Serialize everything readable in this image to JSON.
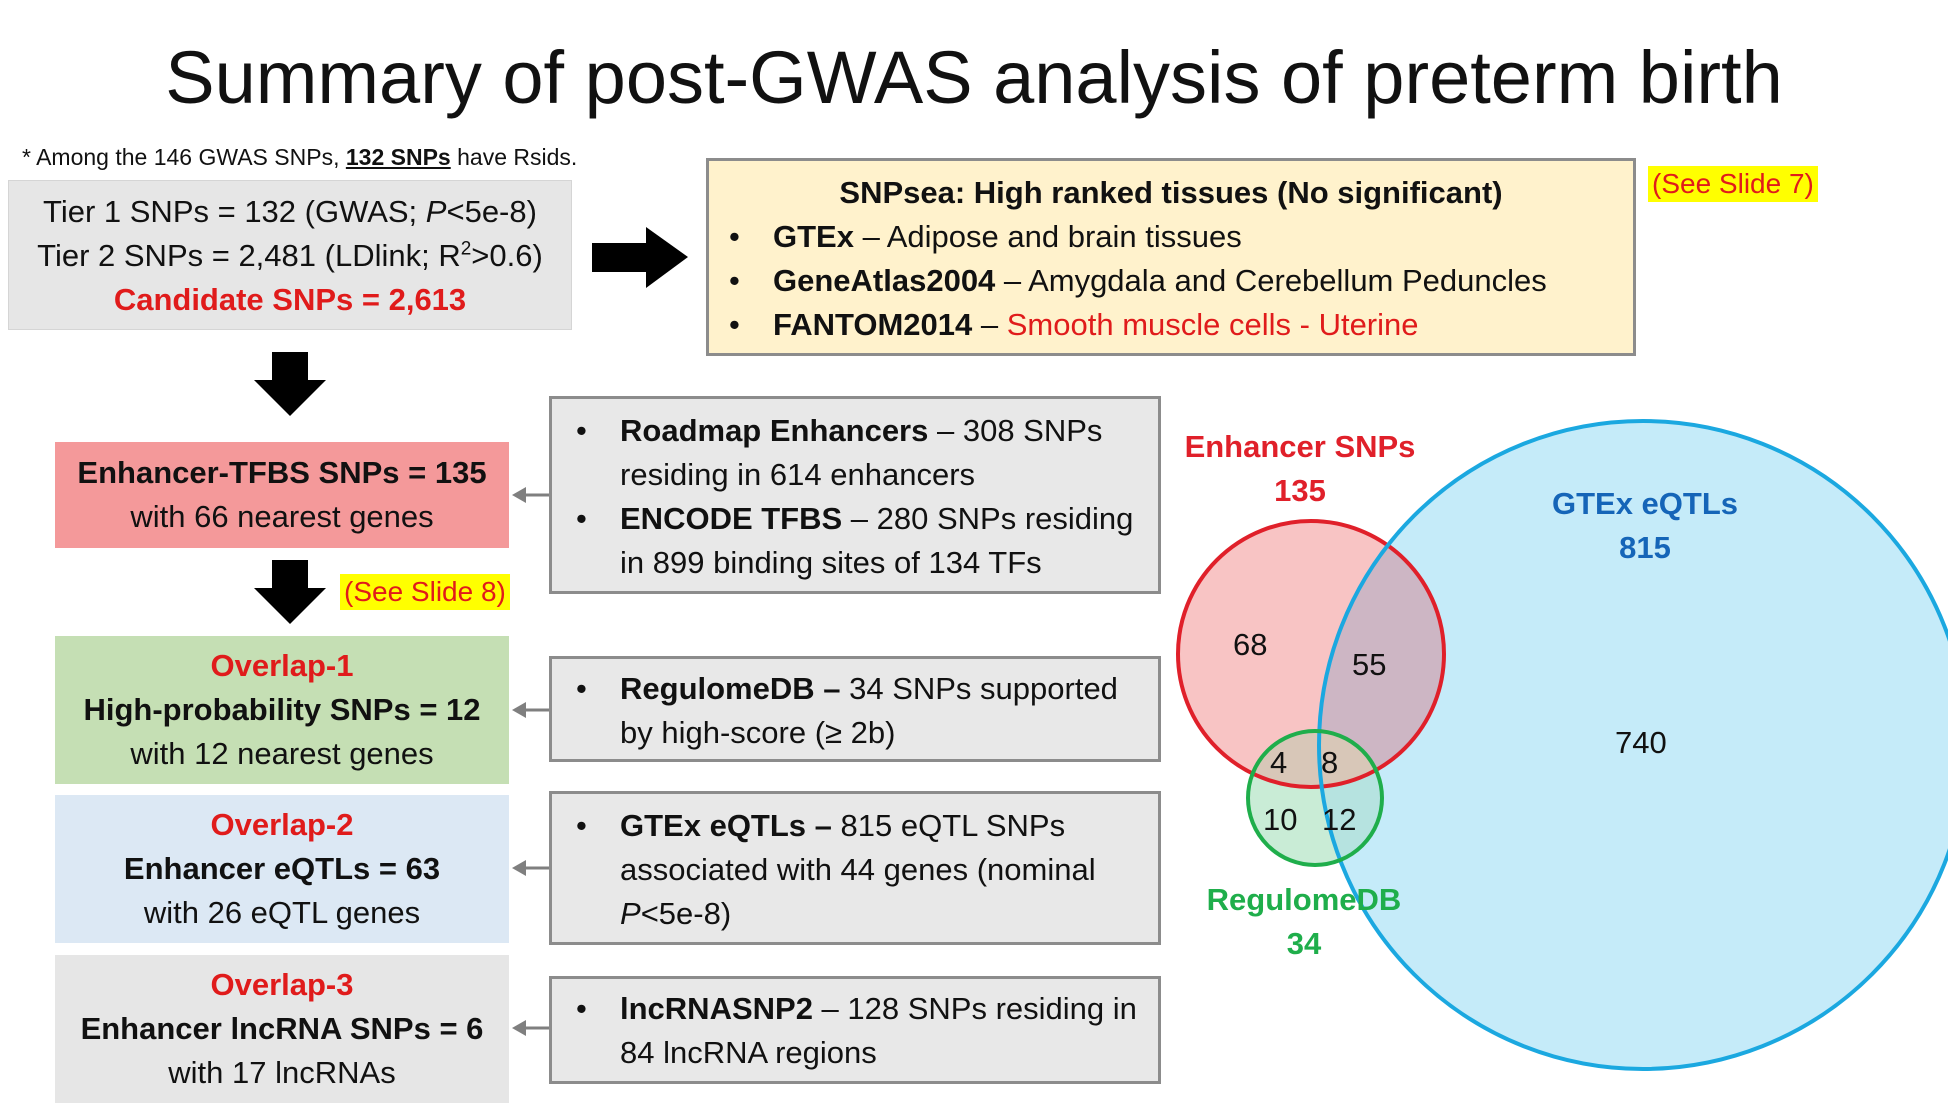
{
  "title": "Summary of post-GWAS analysis of preterm birth",
  "footnote": {
    "prefix": "* Among the 146 GWAS SNPs, ",
    "bold": "132 SNPs",
    "suffix": " have Rsids."
  },
  "tiers": {
    "tier1_pre": "Tier 1 SNPs = 132 (GWAS; ",
    "tier1_p": "P",
    "tier1_post": "<5e-8)",
    "tier2_pre": "Tier 2 SNPs = 2,481 (LDlink; R",
    "tier2_sup": "2",
    "tier2_post": ">0.6)",
    "candidate": "Candidate SNPs = 2,613"
  },
  "snpsea": {
    "title": "SNPsea: High ranked tissues (No significant)",
    "items": [
      {
        "bold": "GTEx",
        "text": " – Adipose and brain tissues",
        "red": ""
      },
      {
        "bold": "GeneAtlas2004",
        "text": " – Amygdala and Cerebellum Peduncles",
        "red": ""
      },
      {
        "bold": "FANTOM2014",
        "text": " – ",
        "red": "Smooth muscle cells - Uterine"
      }
    ]
  },
  "see_slide7": "(See Slide 7)",
  "see_slide8": "(See Slide 8)",
  "enhancer": {
    "line1": "Enhancer-TFBS SNPs = 135",
    "line2": "with 66 nearest genes"
  },
  "overlap1": {
    "label": "Overlap-1",
    "line1": "High-probability SNPs = 12",
    "line2": "with 12 nearest genes"
  },
  "overlap2": {
    "label": "Overlap-2",
    "line1": "Enhancer eQTLs = 63",
    "line2": "with 26 eQTL genes"
  },
  "overlap3": {
    "label": "Overlap-3",
    "line1": "Enhancer lncRNA SNPs = 6",
    "line2": "with 17 lncRNAs"
  },
  "roadmap": {
    "b1_bold": "Roadmap Enhancers",
    "b1_text": " – 308 SNPs residing in 614 enhancers",
    "b2_bold": "ENCODE TFBS",
    "b2_text": " – 280 SNPs residing in 899 binding sites of 134 TFs"
  },
  "regulome": {
    "bold": "RegulomeDB –",
    "text": " 34 SNPs supported by high-score (≥ 2b)"
  },
  "gtex": {
    "bold": "GTEx eQTLs –",
    "text": " 815 eQTL SNPs associated with 44 genes (nominal ",
    "p": "P",
    "tail": "<5e-8)"
  },
  "lncrna": {
    "bold": "lncRNASNP2",
    "text": " – 128 SNPs residing in 84 lncRNA regions"
  },
  "venn": {
    "enhancer_label": "Enhancer SNPs",
    "enhancer_total": "135",
    "gtex_label": "GTEx eQTLs",
    "gtex_total": "815",
    "regulome_label": "RegulomeDB",
    "regulome_total": "34",
    "n_enh_only": "68",
    "n_enh_gtex": "55",
    "n_gtex_only": "740",
    "n_enh_reg": "4",
    "n_all": "8",
    "n_reg_only": "10",
    "n_reg_gtex": "12",
    "colors": {
      "enhancer_stroke": "#e0202a",
      "enhancer_fill": "#f8c4c4",
      "gtex_stroke": "#1ba8e0",
      "gtex_fill": "#c5ebf9",
      "regulome_stroke": "#1fae4b",
      "regulome_fill": "#c9ecd6",
      "gtex_label": "#1565b8",
      "regulome_label": "#1fae4b"
    }
  }
}
